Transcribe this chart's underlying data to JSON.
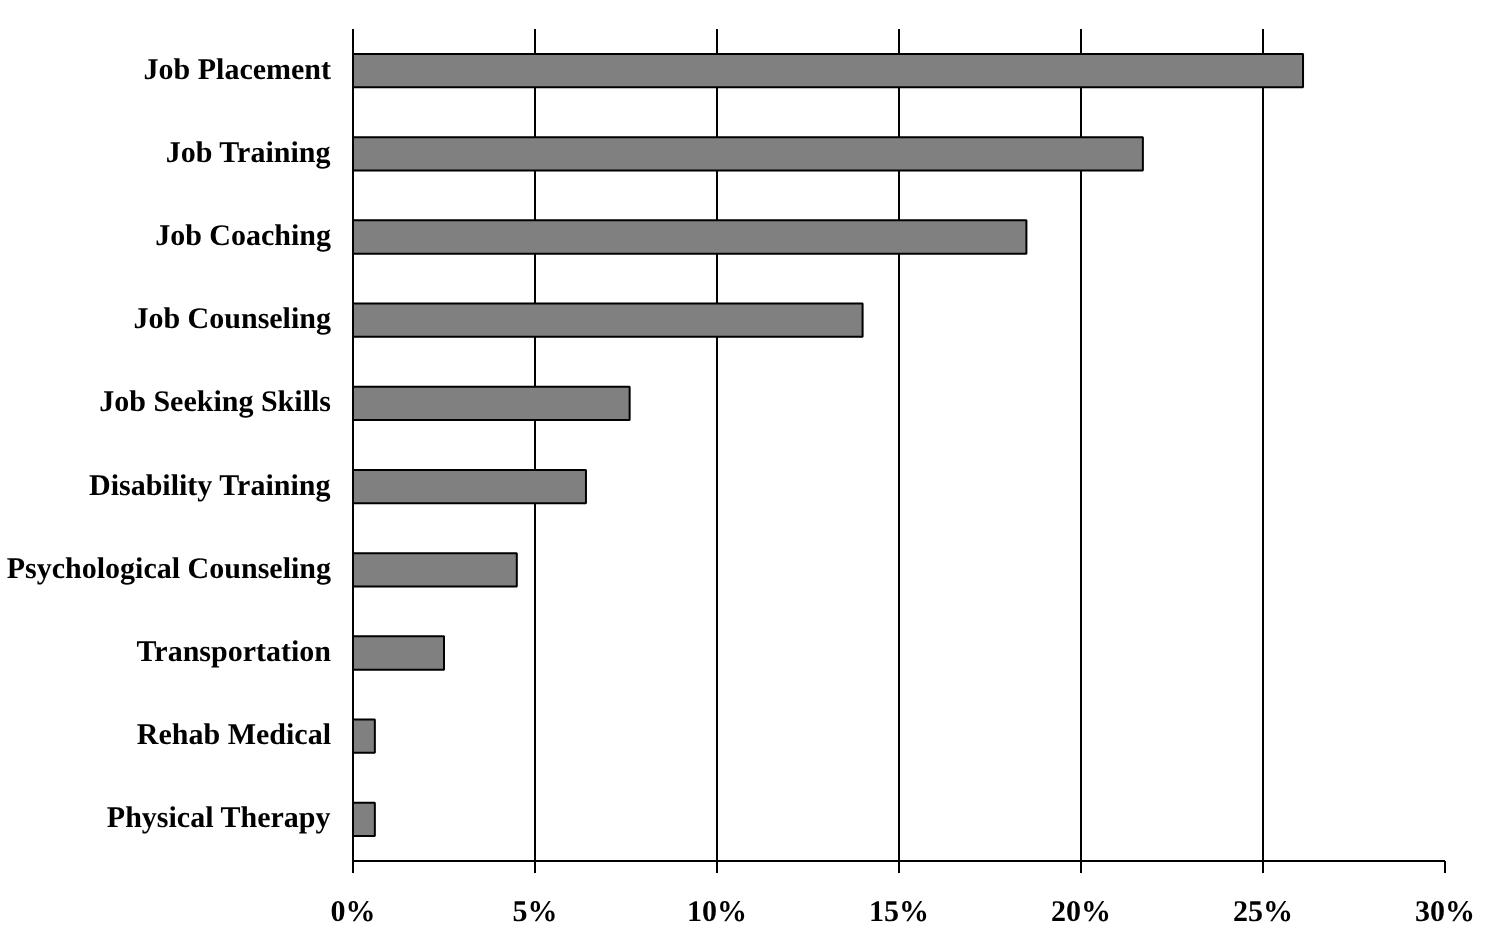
{
  "chart_data": {
    "type": "bar",
    "orientation": "horizontal",
    "categories": [
      "Job Placement",
      "Job Training",
      "Job Coaching",
      "Job Counseling",
      "Job Seeking Skills",
      "Disability Training",
      "Psychological Counseling",
      "Transportation",
      "Rehab Medical",
      "Physical Therapy"
    ],
    "values": [
      26.1,
      21.7,
      18.5,
      14.0,
      7.6,
      6.4,
      4.5,
      2.5,
      0.6,
      0.6
    ],
    "color": "#808080",
    "xlim": [
      0,
      30
    ],
    "xticks": [
      {
        "value": 0,
        "label": "0%"
      },
      {
        "value": 5,
        "label": "5%"
      },
      {
        "value": 10,
        "label": "10%"
      },
      {
        "value": 15,
        "label": "15%"
      },
      {
        "value": 20,
        "label": "20%"
      },
      {
        "value": 25,
        "label": "25%"
      },
      {
        "value": 30,
        "label": "30%"
      }
    ],
    "grid": "x"
  }
}
